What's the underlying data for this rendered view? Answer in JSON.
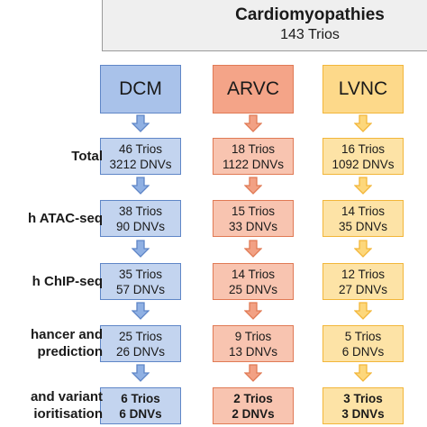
{
  "header": {
    "title": "Cardiomyopathies",
    "subtitle": "143 Trios"
  },
  "colors": {
    "blue": "#5f86c7",
    "orange": "#e07a55",
    "yellow": "#f2b63a"
  },
  "columns": [
    {
      "name": "DCM",
      "color": "blue",
      "boxes": [
        [
          "46 Trios",
          "3212 DNVs"
        ],
        [
          "38 Trios",
          "90 DNVs"
        ],
        [
          "35 Trios",
          "57 DNVs"
        ],
        [
          "25 Trios",
          "26 DNVs"
        ],
        [
          "6 Trios",
          "6 DNVs"
        ]
      ]
    },
    {
      "name": "ARVC",
      "color": "orange",
      "boxes": [
        [
          "18 Trios",
          "1122 DNVs"
        ],
        [
          "15 Trios",
          "33 DNVs"
        ],
        [
          "14 Trios",
          "25 DNVs"
        ],
        [
          "9 Trios",
          "13 DNVs"
        ],
        [
          "2 Trios",
          "2 DNVs"
        ]
      ]
    },
    {
      "name": "LVNC",
      "color": "yellow",
      "boxes": [
        [
          "16 Trios",
          "1092 DNVs"
        ],
        [
          "14 Trios",
          "35 DNVs"
        ],
        [
          "12 Trios",
          "27 DNVs"
        ],
        [
          "5 Trios",
          "6 DNVs"
        ],
        [
          "3 Trios",
          "3 DNVs"
        ]
      ]
    }
  ],
  "row_labels": [
    [
      "Total"
    ],
    [
      "h ATAC-seq"
    ],
    [
      "h ChIP-seq"
    ],
    [
      "hancer and",
      "prediction"
    ],
    [
      "and variant",
      "ioritisation"
    ]
  ]
}
